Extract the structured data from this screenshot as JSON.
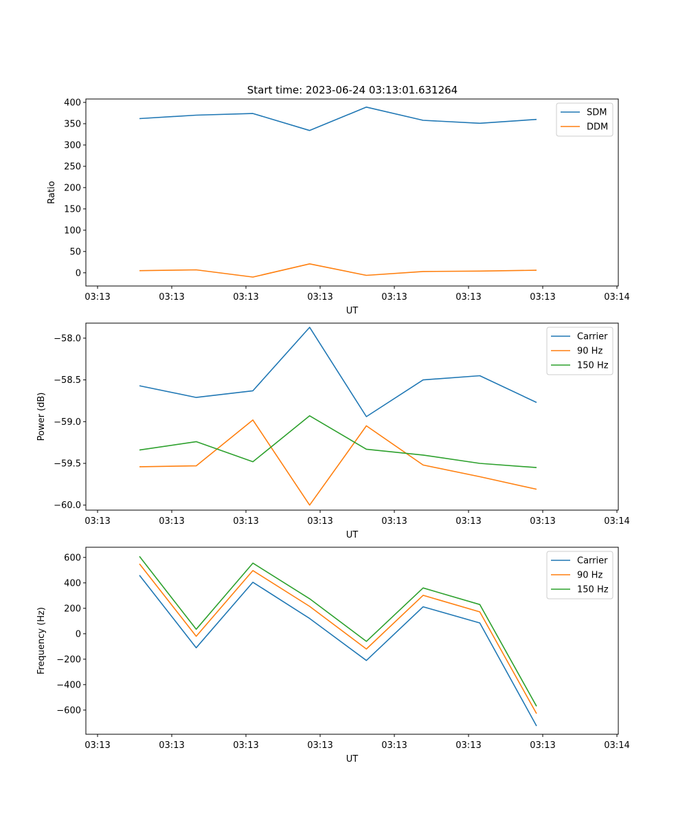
{
  "figure_title": "Start time: 2023-06-24 03:13:01.631264",
  "chart_data": [
    {
      "type": "line",
      "xlabel": "UT",
      "ylabel": "Ratio",
      "x_tick_labels": [
        "03:13",
        "03:13",
        "03:13",
        "03:13",
        "03:13",
        "03:13",
        "03:13",
        "03:14"
      ],
      "y_ticks": [
        0,
        50,
        100,
        150,
        200,
        250,
        300,
        350,
        400
      ],
      "ylim": [
        -31,
        408
      ],
      "legend_position": "top-right",
      "series": [
        {
          "name": "SDM",
          "color": "#1f77b4",
          "values": [
            362,
            370,
            374,
            334,
            389,
            358,
            351,
            360
          ]
        },
        {
          "name": "DDM",
          "color": "#ff7f0e",
          "values": [
            5,
            7,
            -10,
            21,
            -6,
            3,
            4,
            6
          ]
        }
      ]
    },
    {
      "type": "line",
      "xlabel": "UT",
      "ylabel": "Power (dB)",
      "x_tick_labels": [
        "03:13",
        "03:13",
        "03:13",
        "03:13",
        "03:13",
        "03:13",
        "03:13",
        "03:14"
      ],
      "y_ticks": [
        -60.0,
        -59.5,
        -59.0,
        -58.5,
        -58.0
      ],
      "y_tick_labels": [
        "−60.0",
        "−59.5",
        "−59.0",
        "−58.5",
        "−58.0"
      ],
      "ylim": [
        -60.06,
        -57.82
      ],
      "legend_position": "top-right",
      "series": [
        {
          "name": "Carrier",
          "color": "#1f77b4",
          "values": [
            -58.57,
            -58.71,
            -58.63,
            -57.87,
            -58.94,
            -58.5,
            -58.45,
            -58.77
          ]
        },
        {
          "name": "90 Hz",
          "color": "#ff7f0e",
          "values": [
            -59.54,
            -59.53,
            -58.98,
            -60.0,
            -59.05,
            -59.52,
            -59.66,
            -59.81
          ]
        },
        {
          "name": "150 Hz",
          "color": "#2ca02c",
          "values": [
            -59.34,
            -59.24,
            -59.48,
            -58.93,
            -59.33,
            -59.4,
            -59.5,
            -59.55
          ]
        }
      ]
    },
    {
      "type": "line",
      "xlabel": "UT",
      "ylabel": "Frequency (Hz)",
      "x_tick_labels": [
        "03:13",
        "03:13",
        "03:13",
        "03:13",
        "03:13",
        "03:13",
        "03:13",
        "03:14"
      ],
      "y_ticks": [
        -600,
        -400,
        -200,
        0,
        200,
        400,
        600
      ],
      "y_tick_labels": [
        "−600",
        "−400",
        "−200",
        "0",
        "200",
        "400",
        "600"
      ],
      "ylim": [
        -790,
        680
      ],
      "legend_position": "top-right",
      "series": [
        {
          "name": "Carrier",
          "color": "#1f77b4",
          "values": [
            460,
            -110,
            405,
            120,
            -210,
            212,
            85,
            -725
          ]
        },
        {
          "name": "90 Hz",
          "color": "#ff7f0e",
          "values": [
            550,
            -20,
            497,
            215,
            -120,
            302,
            172,
            -628
          ]
        },
        {
          "name": "150 Hz",
          "color": "#2ca02c",
          "values": [
            608,
            35,
            555,
            275,
            -60,
            360,
            230,
            -570
          ]
        }
      ]
    }
  ]
}
